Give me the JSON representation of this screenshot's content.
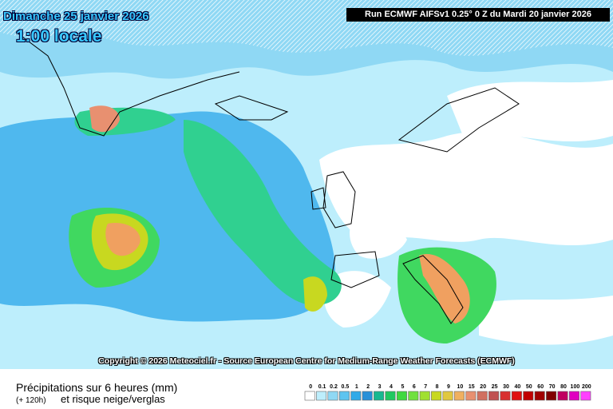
{
  "header": {
    "date": "Dimanche 25 janvier 2026",
    "local_time": "1:00 locale",
    "run": "Run ECMWF AIFSv1 0.25° 0 Z du Mardi 20 janvier 2026"
  },
  "footer": {
    "copyright": "Copyright © 2026 Meteociel.fr - Source European Centre for Medium-Range Weather Forecasts (ECMWF)",
    "parameter": "Précipitations sur 6 heures (mm)",
    "lead_time": "(+ 120h)",
    "subtitle": "et risque neige/verglas"
  },
  "legend": {
    "labels": [
      "0",
      "0.1",
      "0.2",
      "0.5",
      "1",
      "2",
      "3",
      "4",
      "5",
      "6",
      "7",
      "8",
      "9",
      "10",
      "15",
      "20",
      "25",
      "30",
      "40",
      "50",
      "60",
      "70",
      "80",
      "100",
      "200"
    ],
    "colors": [
      "#ffffff",
      "#bdeefc",
      "#8fd8f4",
      "#5ec4f0",
      "#30aae8",
      "#2890d8",
      "#18b890",
      "#20c860",
      "#40d840",
      "#70e040",
      "#a0e030",
      "#c8d820",
      "#e0c840",
      "#f0b060",
      "#e89070",
      "#d07060",
      "#c05050",
      "#d83030",
      "#e01010",
      "#c00000",
      "#a00000",
      "#800000",
      "#c00060",
      "#e000c0",
      "#ff40ff"
    ]
  }
}
